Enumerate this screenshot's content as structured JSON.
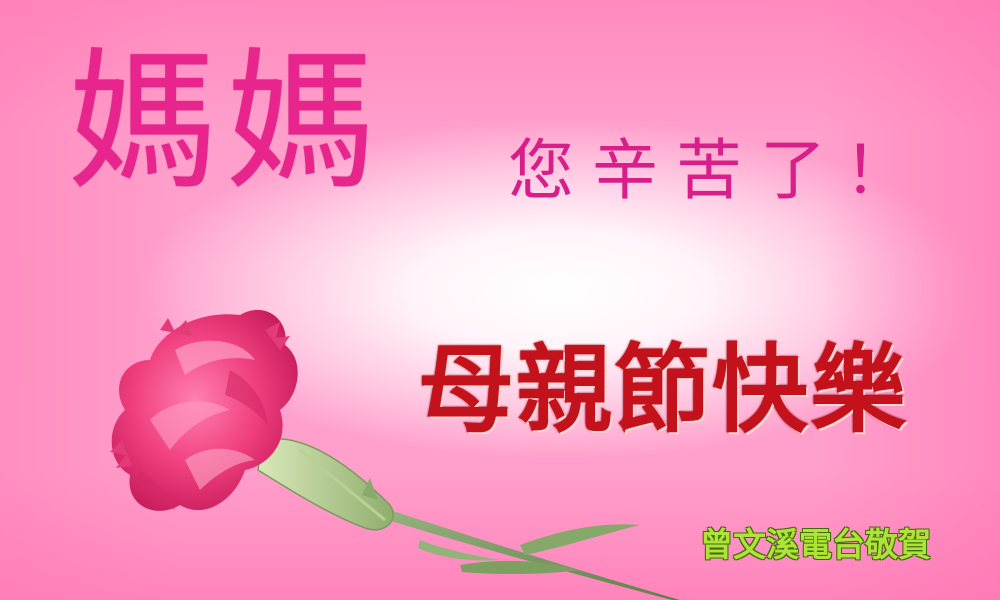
{
  "card": {
    "headline": "媽媽",
    "subline": "您辛苦了！",
    "greeting": "母親節快樂",
    "sender": "曾文溪電台敬賀"
  },
  "illustration": {
    "subject": "pink carnation flower",
    "icon": "carnation-icon"
  },
  "colors": {
    "background": "#ff8dc0",
    "headline": "#e8258d",
    "greeting": "#c4121c",
    "sender": "#aee33a"
  }
}
